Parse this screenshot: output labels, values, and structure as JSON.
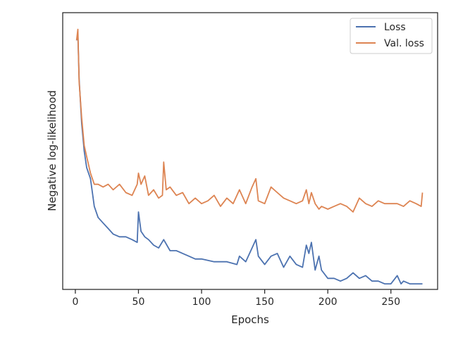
{
  "chart_data": {
    "type": "line",
    "title": "",
    "xlabel": "Epochs",
    "ylabel": "Negative log-likelihood",
    "xlim": [
      -10,
      287
    ],
    "ylim": [
      0,
      100
    ],
    "xticks": [
      0,
      50,
      100,
      150,
      200,
      250
    ],
    "yticks_labeled": false,
    "grid": false,
    "legend_position": "top-right",
    "series": [
      {
        "name": "Loss",
        "color": "#4c72b0",
        "x": [
          1,
          2,
          3,
          5,
          7,
          9,
          12,
          15,
          18,
          22,
          26,
          30,
          35,
          40,
          45,
          49,
          50,
          52,
          55,
          58,
          62,
          66,
          70,
          75,
          80,
          85,
          90,
          95,
          100,
          110,
          120,
          128,
          130,
          135,
          140,
          143,
          145,
          150,
          155,
          160,
          165,
          170,
          175,
          180,
          183,
          185,
          187,
          190,
          193,
          195,
          200,
          205,
          210,
          215,
          220,
          225,
          230,
          235,
          240,
          245,
          250,
          255,
          258,
          260,
          265,
          270,
          275
        ],
        "y": [
          90,
          92,
          76,
          60,
          50,
          44,
          40,
          30,
          26,
          24,
          22,
          20,
          19,
          19,
          18,
          17,
          28,
          21,
          19,
          18,
          16,
          15,
          18,
          14,
          14,
          13,
          12,
          11,
          11,
          10,
          10,
          9,
          12,
          10,
          15,
          18,
          12,
          9,
          12,
          13,
          8,
          12,
          9,
          8,
          16,
          13,
          17,
          7,
          12,
          7,
          4,
          4,
          3,
          4,
          6,
          4,
          5,
          3,
          3,
          2,
          2,
          5,
          2,
          3,
          2,
          2,
          2
        ]
      },
      {
        "name": "Val. loss",
        "color": "#dd8452",
        "x": [
          1,
          2,
          3,
          5,
          7,
          9,
          12,
          15,
          18,
          22,
          26,
          30,
          35,
          40,
          45,
          49,
          50,
          52,
          55,
          58,
          62,
          66,
          69,
          70,
          72,
          75,
          80,
          85,
          90,
          95,
          100,
          105,
          110,
          115,
          120,
          125,
          130,
          135,
          140,
          143,
          145,
          150,
          155,
          160,
          165,
          170,
          175,
          180,
          183,
          185,
          187,
          190,
          193,
          195,
          200,
          205,
          210,
          215,
          220,
          225,
          230,
          235,
          240,
          245,
          250,
          255,
          260,
          265,
          270,
          274,
          275
        ],
        "y": [
          90,
          94,
          75,
          62,
          52,
          48,
          42,
          38,
          38,
          37,
          38,
          36,
          38,
          35,
          34,
          38,
          42,
          38,
          41,
          34,
          36,
          33,
          34,
          46,
          36,
          37,
          34,
          35,
          31,
          33,
          31,
          32,
          34,
          30,
          33,
          31,
          36,
          31,
          37,
          40,
          32,
          31,
          37,
          35,
          33,
          32,
          31,
          32,
          36,
          31,
          35,
          31,
          29,
          30,
          29,
          30,
          31,
          30,
          28,
          33,
          31,
          30,
          32,
          31,
          31,
          31,
          30,
          32,
          31,
          30,
          35
        ]
      }
    ]
  }
}
